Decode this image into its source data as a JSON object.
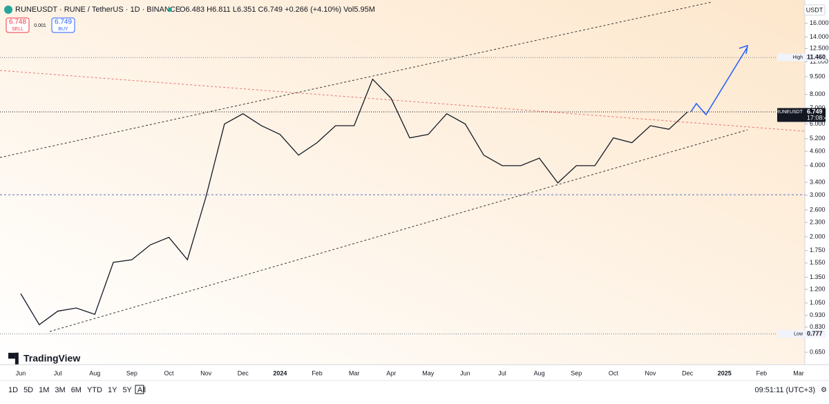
{
  "header": {
    "symbol": "RUNEUSDT · RUNE / TetherUS · 1D · BINANCE",
    "ohlc": "O6.483 H6.811 L6.351 C6.749 +0.266 (+4.10%) Vol5.95M",
    "sell_price": "6.748",
    "sell": "SELL",
    "spread": "0.001",
    "buy_price": "6.749",
    "buy": "BUY",
    "currency": "USDT"
  },
  "brand": "TradingView",
  "toolbar": {
    "ranges": [
      "1D",
      "5D",
      "1M",
      "3M",
      "6M",
      "YTD",
      "1Y",
      "5Y",
      "All"
    ],
    "clock": "09:51:11 (UTC+3)"
  },
  "chart_data": {
    "type": "line",
    "log_scale": true,
    "color": "#131722",
    "categories": [
      "Jun",
      null,
      "Jul",
      null,
      "Aug",
      null,
      "Sep",
      null,
      "Oct",
      null,
      "Nov",
      null,
      "Dec",
      null,
      "2024",
      null,
      "Feb",
      null,
      "Mar",
      null,
      "Apr",
      null,
      "May",
      null,
      "Jun",
      null,
      "Jul",
      null,
      "Aug",
      null,
      "Sep",
      null,
      "Oct",
      null,
      "Nov",
      null,
      "Dec",
      null,
      "2025",
      null,
      "Feb",
      null,
      "Mar"
    ],
    "values": [
      1.15,
      0.85,
      0.97,
      1.0,
      0.94,
      1.56,
      1.6,
      1.85,
      1.99,
      1.6,
      2.95,
      6.0,
      6.63,
      5.9,
      5.42,
      4.43,
      5.0,
      5.9,
      5.9,
      9.28,
      7.7,
      5.24,
      5.42,
      6.63,
      6.0,
      4.43,
      4.0,
      4.0,
      4.3,
      3.38,
      4.0,
      4.0,
      5.24,
      5.0,
      5.9,
      5.7,
      6.749,
      null,
      null,
      null,
      null,
      null,
      null
    ],
    "ylim": [
      0.588,
      19.4
    ],
    "yticks": [
      {
        "value": 0.65,
        "label": "0.650"
      },
      {
        "value": 0.83,
        "label": "0.830"
      },
      {
        "value": 0.93,
        "label": "0.930"
      },
      {
        "value": 1.05,
        "label": "1.050"
      },
      {
        "value": 1.2,
        "label": "1.200"
      },
      {
        "value": 1.35,
        "label": "1.350"
      },
      {
        "value": 1.55,
        "label": "1.550"
      },
      {
        "value": 1.75,
        "label": "1.750"
      },
      {
        "value": 2,
        "label": "2.000"
      },
      {
        "value": 2.3,
        "label": "2.300"
      },
      {
        "value": 2.6,
        "label": "2.600"
      },
      {
        "value": 3,
        "label": "3.000"
      },
      {
        "value": 3.4,
        "label": "3.400"
      },
      {
        "value": 4,
        "label": "4.000"
      },
      {
        "value": 4.6,
        "label": "4.600"
      },
      {
        "value": 5.2,
        "label": "5.200"
      },
      {
        "value": 6,
        "label": "6.000"
      },
      {
        "value": 7,
        "label": "7.000"
      },
      {
        "value": 8,
        "label": "8.000"
      },
      {
        "value": 9.5,
        "label": "9.500"
      },
      {
        "value": 11,
        "label": "11.000"
      },
      {
        "value": 12.5,
        "label": "12.500"
      },
      {
        "value": 14,
        "label": "14.000"
      },
      {
        "value": 16,
        "label": "16.000"
      }
    ],
    "levels": [
      {
        "name": "High",
        "value": 11.46,
        "label": "11.460"
      },
      {
        "name": "RUNEUSDT",
        "value": 6.749,
        "label": "6.749",
        "countdown": "17:08:49"
      },
      {
        "name": "Low",
        "value": 0.777,
        "label": "0.777"
      }
    ]
  }
}
